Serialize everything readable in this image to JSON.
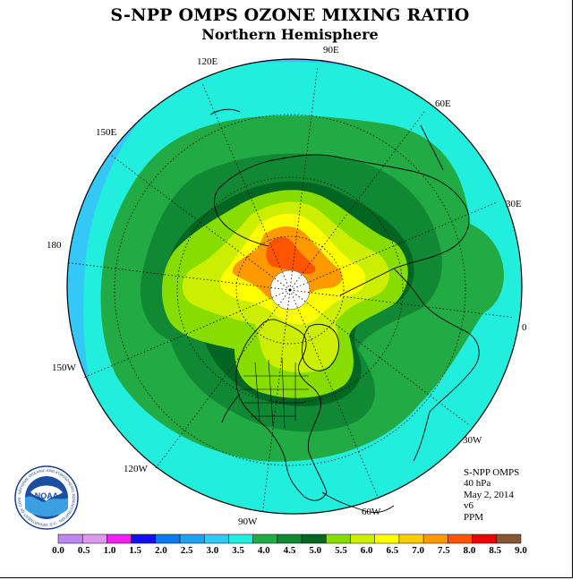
{
  "title": "S-NPP OMPS OZONE MIXING RATIO",
  "subtitle": "Northern Hemisphere",
  "longitude_labels": [
    "90E",
    "60E",
    "30E",
    "0",
    "30W",
    "60W",
    "90W",
    "120W",
    "150W",
    "180",
    "150E",
    "120E"
  ],
  "info": {
    "instrument": "S-NPP OMPS",
    "pressure": "40 hPa",
    "date": "May 2, 2014",
    "version": "v6",
    "units": "PPM"
  },
  "logo": {
    "text": "NOAA",
    "ring_text": "NATIONAL OCEANIC AND ATMOSPHERIC ADMINISTRATION · U.S. DEPARTMENT OF COMMERCE"
  },
  "colorbar": {
    "ticks": [
      "0.0",
      "0.5",
      "1.0",
      "1.5",
      "2.0",
      "2.5",
      "3.0",
      "3.5",
      "4.0",
      "4.5",
      "5.0",
      "5.5",
      "6.0",
      "6.5",
      "7.0",
      "7.5",
      "8.0",
      "8.5",
      "9.0"
    ],
    "colors": [
      "#bb88ee",
      "#dd99ee",
      "#ee22ee",
      "#1111ee",
      "#1177ee",
      "#22a0ee",
      "#33c8f6",
      "#22eedd",
      "#22aa44",
      "#118833",
      "#006622",
      "#88dd00",
      "#ccee00",
      "#ffff00",
      "#ffcc00",
      "#ff9900",
      "#ff5500",
      "#ee0000",
      "#885533"
    ]
  },
  "legend_colors": {
    "outer": "#33c8f6",
    "cyan": "#22eedd",
    "green": "#22aa44",
    "mid_green": "#118833",
    "dark_green": "#006622",
    "light_green": "#88dd00",
    "yellow_green": "#ccee00",
    "yellow": "#ffff00",
    "orange": "#ff9900",
    "red_orange": "#ff5500"
  }
}
